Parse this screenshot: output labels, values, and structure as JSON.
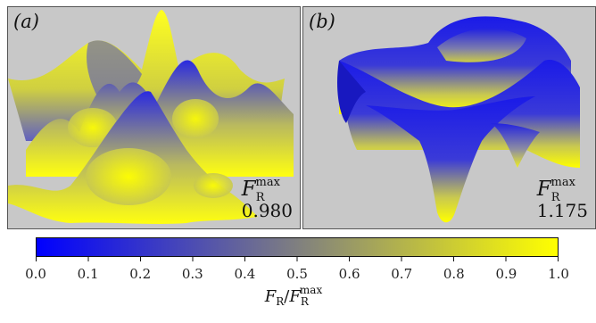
{
  "panels": [
    {
      "label": "(a)",
      "fmax_symbol": "F",
      "fmax_sub": "R",
      "fmax_sup": "max",
      "fmax_value": "0.980"
    },
    {
      "label": "(b)",
      "fmax_symbol": "F",
      "fmax_sub": "R",
      "fmax_sup": "max",
      "fmax_value": "1.175"
    }
  ],
  "colorbar": {
    "colors": [
      "#0000ff",
      "#ffff00"
    ],
    "ticks": [
      "0.0",
      "0.1",
      "0.2",
      "0.3",
      "0.4",
      "0.5",
      "0.6",
      "0.7",
      "0.8",
      "0.9",
      "1.0"
    ],
    "label_num": "F",
    "label_num_sub": "R",
    "label_slash": "/",
    "label_den": "F",
    "label_den_sub": "R",
    "label_den_sup": "max"
  }
}
